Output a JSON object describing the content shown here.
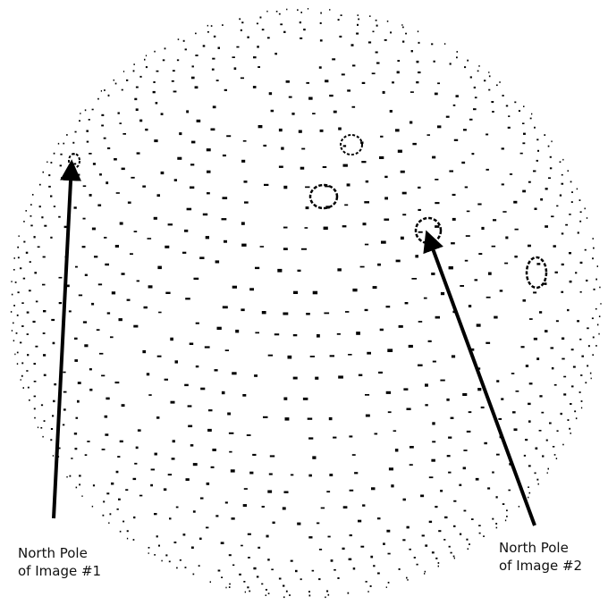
{
  "annotations": [
    {
      "id": "pole-1",
      "line1": "North Pole",
      "line2": "of Image #1"
    },
    {
      "id": "pole-2",
      "line1": "North Pole",
      "line2": "of Image #2"
    }
  ],
  "colors": {
    "dots": "#000000",
    "arrow": "#000000",
    "background": "#ffffff"
  }
}
